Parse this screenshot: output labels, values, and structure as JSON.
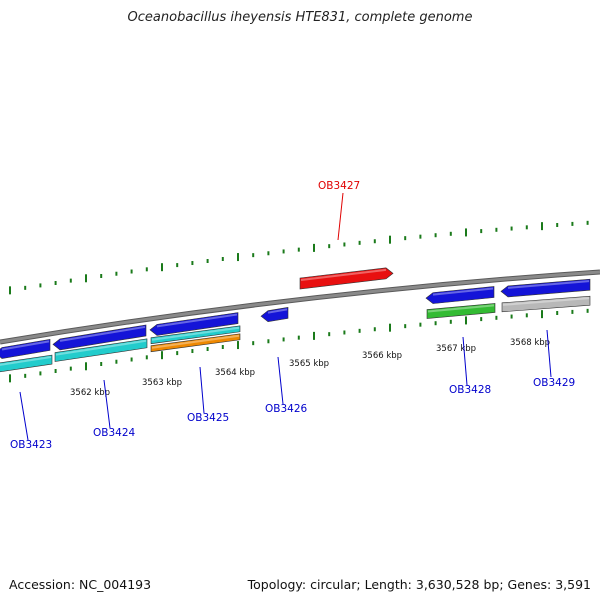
{
  "title": "Oceanobacillus iheyensis HTE831, complete genome",
  "footer": {
    "accession": "Accession: NC_004193",
    "summary": "Topology: circular; Length: 3,630,528 bp; Genes: 3,591"
  },
  "colors": {
    "backbone": "#8a8a8a",
    "tick": "#1a7a1a",
    "forward_gene": "#e81010",
    "reverse_gene": "#1414d8",
    "rna_cyan": "#22cccc",
    "rna_orange": "#ee8800",
    "rna_green": "#33bb33",
    "pseudo_gray": "#b8b8b8",
    "label_forward": "#e00000",
    "label_reverse": "#0000cc"
  },
  "scale_labels": [
    "3562 kbp",
    "3563 kbp",
    "3564 kbp",
    "3565 kbp",
    "3566 kbp",
    "3567 kbp",
    "3568 kbp"
  ],
  "gene_labels": [
    {
      "name": "OB3423",
      "strand": "reverse"
    },
    {
      "name": "OB3424",
      "strand": "reverse"
    },
    {
      "name": "OB3425",
      "strand": "reverse"
    },
    {
      "name": "OB3426",
      "strand": "reverse"
    },
    {
      "name": "OB3427",
      "strand": "forward"
    },
    {
      "name": "OB3428",
      "strand": "reverse"
    },
    {
      "name": "OB3429",
      "strand": "reverse"
    }
  ]
}
